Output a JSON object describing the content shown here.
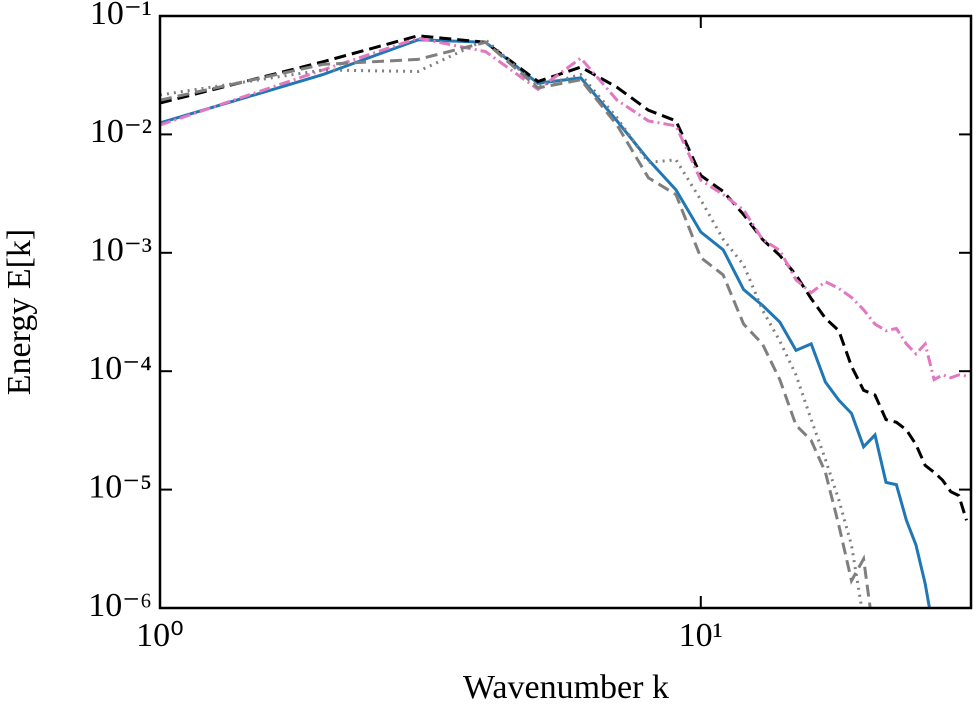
{
  "chart_data": {
    "type": "line",
    "x_label": "Wavenumber k",
    "y_label": "Energy E[k]",
    "log_x": true,
    "log_y": true,
    "grid": false,
    "xlim": [
      1,
      31.6
    ],
    "ylim": [
      1e-06,
      0.1
    ],
    "xticks": [
      {
        "value": 1,
        "label": "10⁰"
      },
      {
        "value": 10,
        "label": "10¹"
      }
    ],
    "yticks": [
      {
        "value": 1e-06,
        "label": "10⁻⁶"
      },
      {
        "value": 1e-05,
        "label": "10⁻⁵"
      },
      {
        "value": 0.0001,
        "label": "10⁻⁴"
      },
      {
        "value": 0.001,
        "label": "10⁻³"
      },
      {
        "value": 0.01,
        "label": "10⁻²"
      },
      {
        "value": 0.1,
        "label": "10⁻¹"
      }
    ],
    "x": [
      1,
      2,
      3,
      4,
      5,
      6,
      7,
      8,
      9,
      10,
      11,
      12,
      13,
      14,
      15,
      16,
      17,
      18,
      19,
      20,
      21,
      22,
      23,
      24,
      25,
      26,
      27,
      28,
      29,
      30,
      31
    ],
    "series": [
      {
        "color": "#1f77b4",
        "style": "solid",
        "values": [
          0.0125,
          0.032,
          0.063,
          0.06,
          0.027,
          0.03,
          0.013,
          0.0061,
          0.0034,
          0.0015,
          0.00106,
          0.00049,
          0.00036,
          0.00026,
          0.00015,
          0.00017,
          8.1e-05,
          5.7e-05,
          4.4e-05,
          2.3e-05,
          2.9e-05,
          1.15e-05,
          1.1e-05,
          5.5e-06,
          3.4e-06,
          1.6e-06,
          6e-07,
          null,
          null,
          null,
          null
        ]
      },
      {
        "color": "#000000",
        "style": "dashed",
        "values": [
          0.0184,
          0.041,
          0.068,
          0.06,
          0.028,
          0.037,
          0.025,
          0.016,
          0.013,
          0.0045,
          0.0033,
          0.0021,
          0.0013,
          0.00095,
          0.00065,
          0.00041,
          0.00028,
          0.00022,
          0.00011,
          6.9e-05,
          6.3e-05,
          3.9e-05,
          3.7e-05,
          3.2e-05,
          2.4e-05,
          1.6e-05,
          1.4e-05,
          1.2e-05,
          9.6e-06,
          8.9e-06,
          5.5e-06
        ]
      },
      {
        "color": "#e377c2",
        "style": "dashdot",
        "values": [
          0.012,
          0.035,
          0.065,
          0.05,
          0.024,
          0.044,
          0.0195,
          0.013,
          0.0118,
          0.0041,
          0.0031,
          0.0023,
          0.0013,
          0.00105,
          0.00059,
          0.00046,
          0.00057,
          0.0005,
          0.00042,
          0.00033,
          0.00025,
          0.00022,
          0.00023,
          0.00017,
          0.00014,
          0.00017,
          8.5e-05,
          9.3e-05,
          8.8e-05,
          9.3e-05,
          9.1e-05
        ]
      },
      {
        "color": "#7f7f7f",
        "style": "dotted",
        "values": [
          0.0215,
          0.035,
          0.034,
          0.063,
          0.0256,
          0.032,
          0.0138,
          0.0058,
          0.0061,
          0.0028,
          0.0013,
          0.00079,
          0.00033,
          0.00018,
          9.3e-05,
          3.9e-05,
          1.8e-05,
          8.2e-06,
          3.4e-06,
          8e-07,
          null,
          null,
          null,
          null,
          null,
          null,
          null,
          null,
          null,
          null,
          null
        ]
      },
      {
        "color": "#7f7f7f",
        "style": "dashed",
        "values": [
          0.0195,
          0.039,
          0.043,
          0.06,
          0.0247,
          0.029,
          0.012,
          0.0043,
          0.0031,
          0.00091,
          0.00065,
          0.00025,
          0.00017,
          8.5e-05,
          3.5e-05,
          2.6e-05,
          1.4e-05,
          5e-06,
          1.7e-06,
          2.6e-06,
          5e-07,
          null,
          null,
          null,
          null,
          null,
          null,
          null,
          null,
          null,
          null
        ]
      }
    ]
  }
}
